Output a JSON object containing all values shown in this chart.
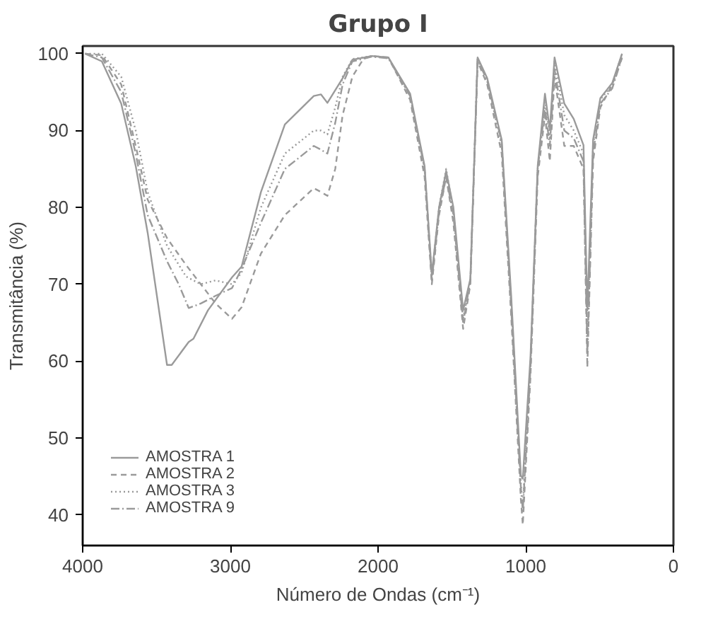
{
  "chart_data": {
    "type": "line",
    "title": "Grupo I",
    "xlabel": "Número de Ondas (cm⁻¹)",
    "ylabel": "Transmitância (%)",
    "xlim": [
      4000,
      0
    ],
    "ylim": [
      36,
      101
    ],
    "xticks": [
      4000,
      3000,
      2000,
      1000,
      0
    ],
    "yticks": [
      40,
      50,
      60,
      70,
      80,
      90,
      100
    ],
    "grid": false,
    "legend": "bottom left",
    "marker": "none",
    "series": [
      {
        "name": "AMOSTRA 1",
        "color": "#9a9a9a",
        "line_style": "solid",
        "x": [
          3983,
          3870,
          3739,
          3641,
          3560,
          3429,
          3397,
          3282,
          3250,
          3152,
          2989,
          2924,
          2793,
          2631,
          2435,
          2386,
          2343,
          2240,
          2174,
          2043,
          1930,
          1783,
          1685,
          1636,
          1587,
          1539,
          1490,
          1424,
          1375,
          1326,
          1261,
          1163,
          1099,
          1033,
          1020,
          968,
          919,
          870,
          837,
          805,
          739,
          675,
          609,
          583,
          544,
          495,
          414,
          348
        ],
        "values": [
          100,
          99,
          93.5,
          85.4,
          76.7,
          59.5,
          59.5,
          62.5,
          62.9,
          66.6,
          70.9,
          72.3,
          82,
          90.8,
          94.5,
          94.7,
          93.6,
          96.8,
          99.2,
          99.7,
          99.5,
          94.8,
          85.4,
          71.3,
          80,
          84.7,
          80,
          66.6,
          70.7,
          99.5,
          96.8,
          88.8,
          68.6,
          45.1,
          44.7,
          60.5,
          85.4,
          94.8,
          90.1,
          99.5,
          93.5,
          91.5,
          88.1,
          66.6,
          88.8,
          94.2,
          96.2,
          100
        ]
      },
      {
        "name": "AMOSTRA 2",
        "color": "#9a9a9a",
        "line_style": "dashed",
        "x": [
          3983,
          3870,
          3739,
          3641,
          3560,
          3429,
          3300,
          3200,
          3100,
          2989,
          2924,
          2793,
          2631,
          2435,
          2386,
          2343,
          2290,
          2240,
          2174,
          2100,
          2043,
          1930,
          1783,
          1685,
          1636,
          1587,
          1539,
          1490,
          1424,
          1375,
          1326,
          1261,
          1163,
          1099,
          1033,
          1020,
          968,
          919,
          870,
          837,
          805,
          739,
          675,
          609,
          583,
          544,
          495,
          414,
          348
        ],
        "values": [
          100,
          99.8,
          96,
          88,
          81,
          76,
          72.5,
          70,
          67.5,
          65.5,
          67,
          74,
          79,
          82.5,
          82,
          81.5,
          85,
          92,
          97,
          99.3,
          99.7,
          99.5,
          94,
          84,
          70,
          79,
          84,
          78,
          64.2,
          70,
          99,
          96,
          87,
          66,
          42,
          38.7,
          58,
          84,
          92,
          86,
          97,
          88,
          88,
          85,
          59.2,
          86,
          93,
          96,
          99.5
        ]
      },
      {
        "name": "AMOSTRA 3",
        "color": "#9a9a9a",
        "line_style": "dotted",
        "x": [
          3983,
          3870,
          3739,
          3641,
          3560,
          3429,
          3300,
          3200,
          3100,
          2989,
          2924,
          2793,
          2631,
          2435,
          2386,
          2343,
          2290,
          2240,
          2174,
          2043,
          1930,
          1783,
          1685,
          1636,
          1587,
          1539,
          1490,
          1424,
          1375,
          1326,
          1261,
          1163,
          1099,
          1033,
          1020,
          968,
          919,
          870,
          837,
          805,
          739,
          675,
          609,
          583,
          544,
          495,
          414,
          348
        ],
        "values": [
          100,
          100,
          97,
          90,
          82,
          75,
          71,
          70,
          70.5,
          70,
          71.5,
          80,
          87,
          90,
          90,
          89.5,
          93,
          97,
          99.3,
          99.7,
          99.5,
          94.5,
          85,
          71,
          80,
          85,
          79.5,
          65.5,
          70.5,
          99.3,
          96.5,
          88,
          67.5,
          44,
          41,
          59.5,
          85,
          94,
          89,
          99,
          92,
          90,
          87,
          62,
          88,
          94,
          96,
          100
        ]
      },
      {
        "name": "AMOSTRA 9",
        "color": "#9a9a9a",
        "line_style": "dashdot",
        "x": [
          3983,
          3870,
          3739,
          3641,
          3560,
          3429,
          3350,
          3282,
          3200,
          3100,
          2989,
          2924,
          2793,
          2631,
          2435,
          2386,
          2343,
          2290,
          2240,
          2174,
          2043,
          1930,
          1783,
          1685,
          1636,
          1587,
          1539,
          1490,
          1424,
          1375,
          1326,
          1261,
          1163,
          1099,
          1033,
          1020,
          968,
          919,
          870,
          837,
          805,
          739,
          675,
          609,
          583,
          544,
          495,
          414,
          348
        ],
        "values": [
          100,
          99.5,
          95,
          87,
          79,
          73,
          70,
          66.9,
          67.5,
          68.5,
          69.5,
          72,
          78,
          85,
          88,
          87.5,
          87,
          91,
          96,
          99,
          99.6,
          99.4,
          94.5,
          85,
          70.5,
          79.5,
          84,
          79,
          65,
          70.5,
          99.2,
          96.5,
          88.5,
          67,
          43.5,
          40.5,
          59,
          85,
          93,
          88,
          98,
          90,
          89,
          86,
          61,
          87,
          93.5,
          95.5,
          99.5
        ]
      }
    ]
  }
}
